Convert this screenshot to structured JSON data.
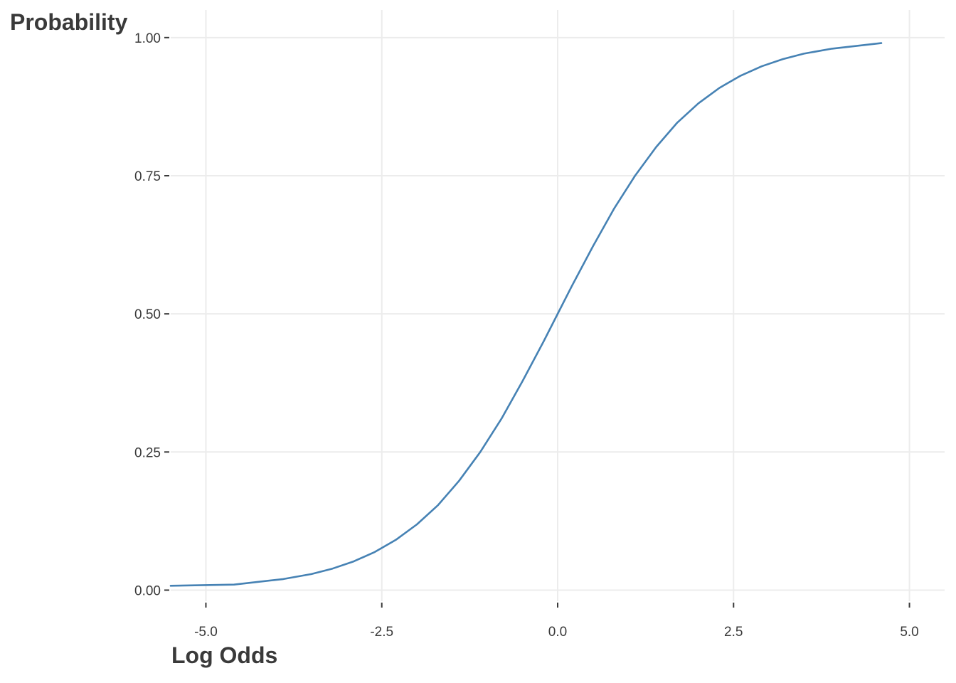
{
  "chart_data": {
    "type": "line",
    "xlabel": "Log Odds",
    "ylabel": "Probability",
    "xlim": [
      -5.5,
      5.5
    ],
    "ylim": [
      -0.02,
      1.05
    ],
    "x_ticks": [
      -5.0,
      -2.5,
      0.0,
      2.5,
      5.0
    ],
    "x_tick_labels": [
      "-5.0",
      "-2.5",
      "0.0",
      "2.5",
      "5.0"
    ],
    "y_ticks": [
      0.0,
      0.25,
      0.5,
      0.75,
      1.0
    ],
    "y_tick_labels": [
      "0.00",
      "0.25",
      "0.50",
      "0.75",
      "1.00"
    ],
    "grid": true,
    "line_color": "#4682b4",
    "series": [
      {
        "x": [
          -5.5,
          -4.6,
          -3.9,
          -3.5,
          -3.2,
          -2.9,
          -2.6,
          -2.3,
          -2.0,
          -1.7,
          -1.4,
          -1.1,
          -0.8,
          -0.5,
          -0.2,
          0.0,
          0.2,
          0.5,
          0.8,
          1.1,
          1.4,
          1.7,
          2.0,
          2.3,
          2.6,
          2.9,
          3.2,
          3.5,
          3.9,
          4.6
        ],
        "y": [
          0.008,
          0.01,
          0.02,
          0.029,
          0.039,
          0.052,
          0.069,
          0.091,
          0.119,
          0.154,
          0.198,
          0.25,
          0.31,
          0.378,
          0.45,
          0.5,
          0.55,
          0.622,
          0.69,
          0.75,
          0.802,
          0.846,
          0.881,
          0.909,
          0.931,
          0.948,
          0.961,
          0.971,
          0.98,
          0.99
        ]
      }
    ]
  }
}
